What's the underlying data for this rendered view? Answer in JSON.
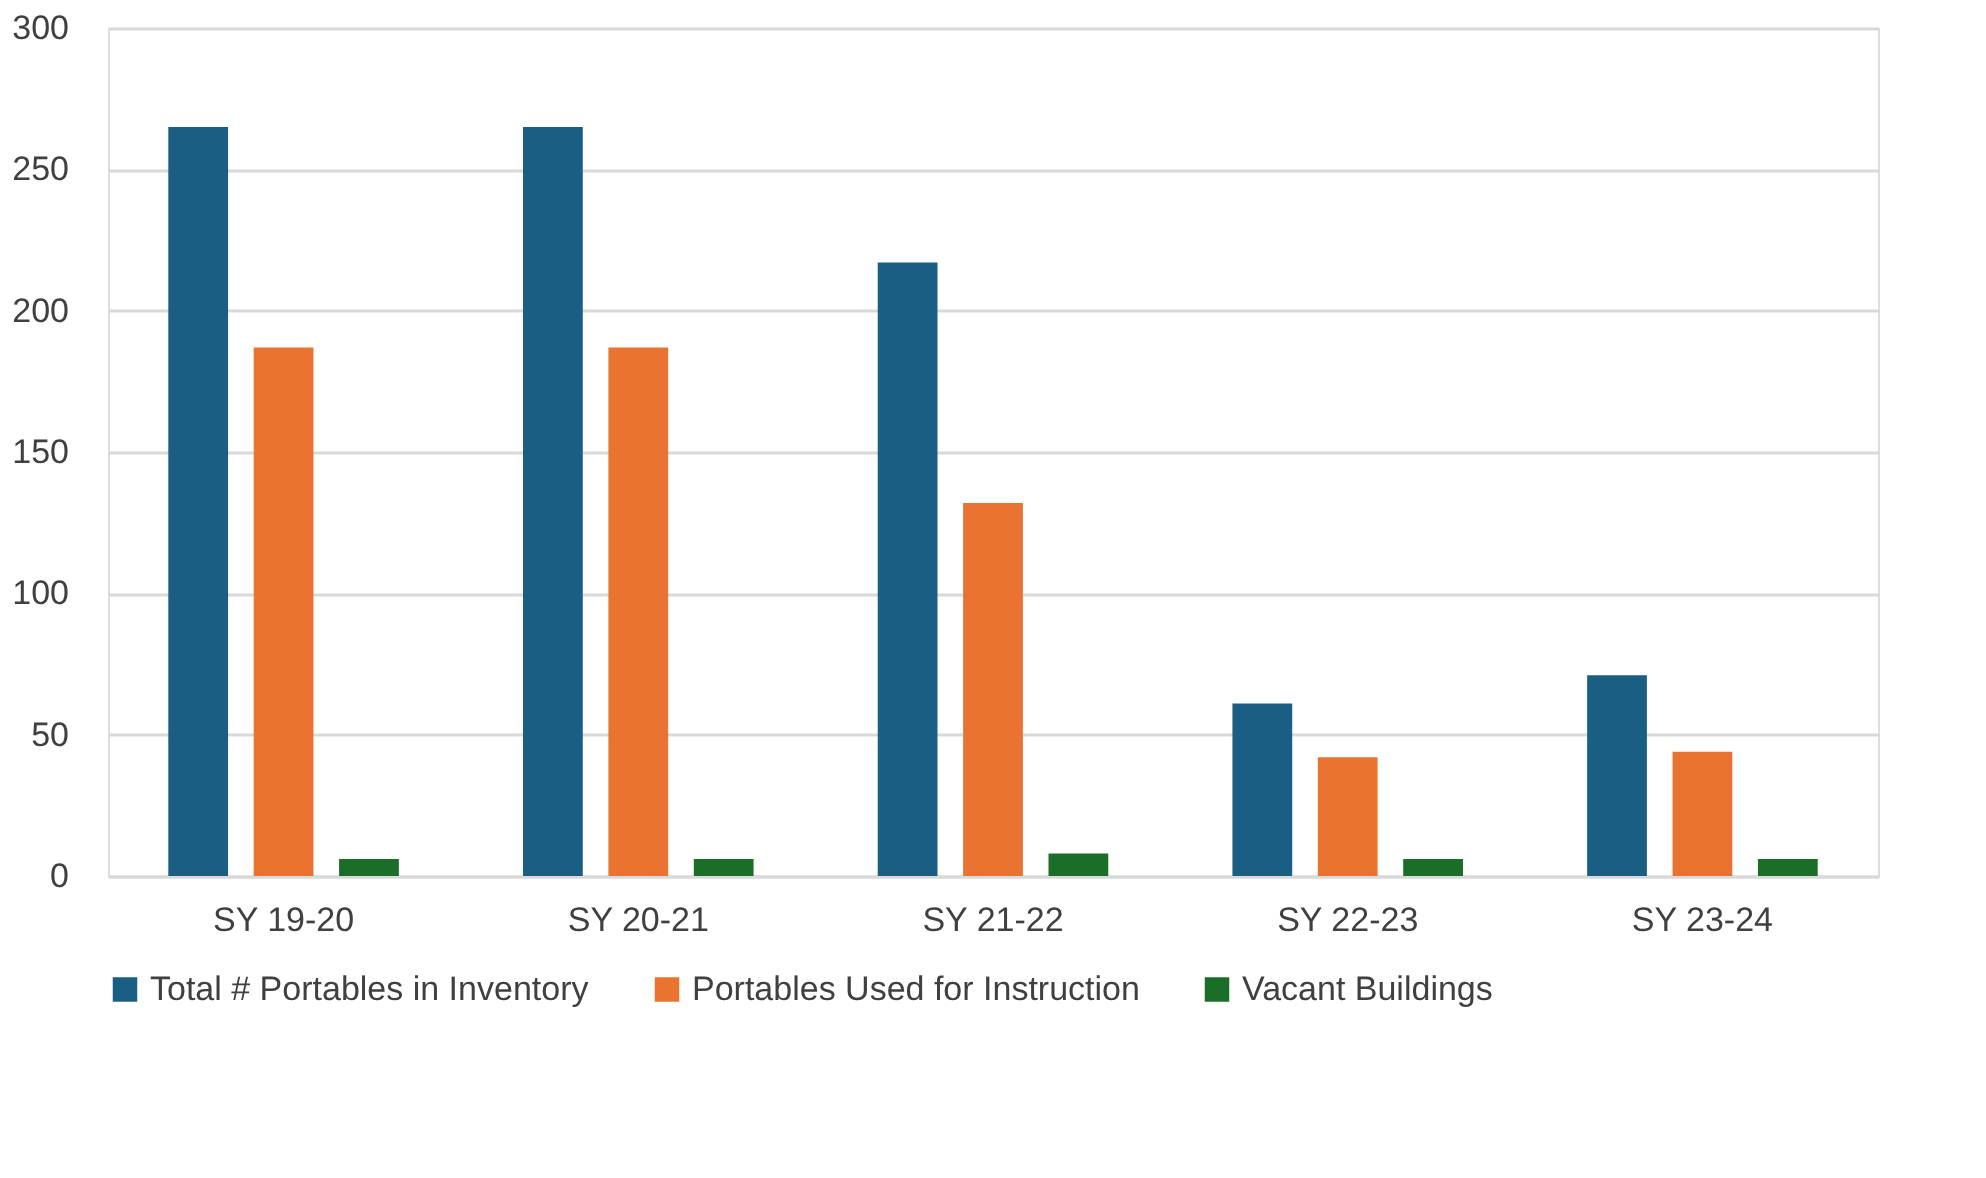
{
  "chart_data": {
    "type": "bar",
    "categories": [
      "SY 19-20",
      "SY 20-21",
      "SY 21-22",
      "SY 22-23",
      "SY 23-24"
    ],
    "series": [
      {
        "name": "Total # Portables in Inventory",
        "color": "#1a5e83",
        "values": [
          265,
          265,
          217,
          61,
          71
        ]
      },
      {
        "name": "Portables Used for Instruction",
        "color": "#eb7331",
        "values": [
          187,
          187,
          132,
          42,
          44
        ]
      },
      {
        "name": "Vacant Buildings",
        "color": "#1a6e28",
        "values": [
          6,
          6,
          8,
          6,
          6
        ]
      }
    ],
    "ylim": [
      0,
      300
    ],
    "yticks": [
      0,
      50,
      100,
      150,
      200,
      250,
      300
    ],
    "grid": "y",
    "legend": "bottom"
  }
}
